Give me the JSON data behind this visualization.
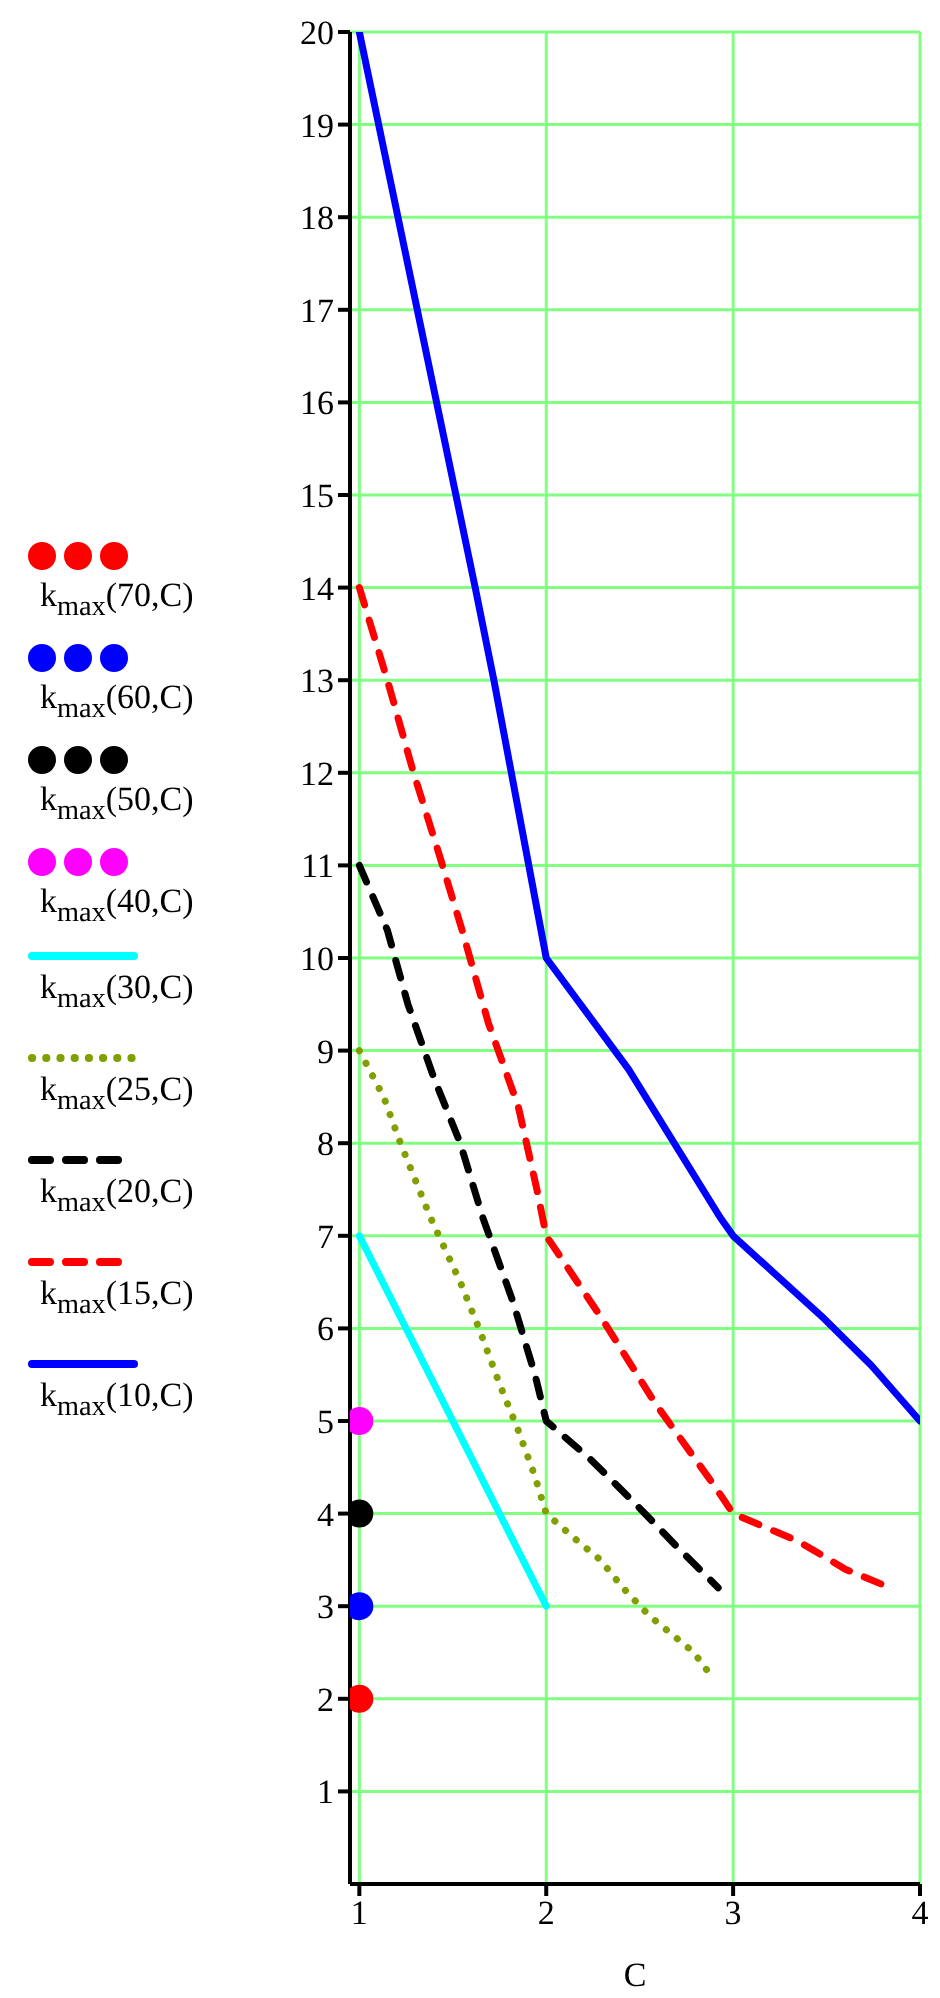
{
  "chart_data": {
    "type": "line",
    "xlabel": "C",
    "xlim": [
      0.95,
      4
    ],
    "xticks": [
      1,
      2,
      3,
      4
    ],
    "ylim": [
      0,
      20
    ],
    "yticks": [
      1,
      2,
      3,
      4,
      5,
      6,
      7,
      8,
      9,
      10,
      11,
      12,
      13,
      14,
      15,
      16,
      17,
      18,
      19,
      20
    ],
    "grid": true,
    "legend": "left",
    "series": [
      {
        "name": "k$_{max}$(70,C)",
        "type": "scatter",
        "marker": "circle",
        "color": "#ff0000",
        "x": [
          1
        ],
        "values": [
          2
        ]
      },
      {
        "name": "k$_{max}$(60,C)",
        "type": "scatter",
        "marker": "circle",
        "color": "#0000ff",
        "x": [
          1
        ],
        "values": [
          3
        ]
      },
      {
        "name": "k$_{max}$(50,C)",
        "type": "scatter",
        "marker": "circle",
        "color": "#000000",
        "x": [
          1
        ],
        "values": [
          4
        ]
      },
      {
        "name": "k$_{max}$(40,C)",
        "type": "scatter",
        "marker": "circle",
        "color": "#ff00ff",
        "x": [
          1
        ],
        "values": [
          5
        ]
      },
      {
        "name": "k$_{max}$(30,C)",
        "line_style": "solid",
        "color": "#00ffff",
        "x": [
          1,
          2
        ],
        "values": [
          7,
          3
        ]
      },
      {
        "name": "k$_{max}$(25,C)",
        "line_style": "dotted",
        "color": "#80a000",
        "x": [
          1,
          1.13,
          1.22,
          1.38,
          1.54,
          1.64,
          1.75,
          1.85,
          1.94,
          2,
          2.17,
          2.29,
          2.41,
          2.55,
          2.67,
          2.79,
          2.9
        ],
        "values": [
          9,
          8.5,
          8,
          7.2,
          6.5,
          6,
          5.4,
          4.9,
          4.4,
          4,
          3.7,
          3.5,
          3.2,
          2.9,
          2.7,
          2.5,
          2.2
        ]
      },
      {
        "name": "k$_{max}$(20,C)",
        "line_style": "dashed",
        "color": "#000000",
        "x": [
          1,
          1.15,
          1.26,
          1.4,
          1.54,
          1.66,
          1.82,
          1.94,
          2,
          2.23,
          2.48,
          2.72,
          2.92
        ],
        "values": [
          11,
          10.3,
          9.5,
          8.7,
          8,
          7.2,
          6.3,
          5.5,
          5,
          4.6,
          4.1,
          3.6,
          3.2
        ]
      },
      {
        "name": "k$_{max}$(15,C)",
        "line_style": "dashed",
        "color": "#ff0000",
        "x": [
          1,
          1.15,
          1.29,
          1.43,
          1.55,
          1.69,
          1.85,
          1.95,
          2,
          2.3,
          2.58,
          2.9,
          3,
          3.35,
          3.6,
          3.84
        ],
        "values": [
          14,
          13,
          12,
          11.1,
          10.3,
          9.3,
          8.4,
          7.5,
          7,
          6.1,
          5.2,
          4.3,
          4,
          3.7,
          3.4,
          3.2
        ]
      },
      {
        "name": "k$_{max}$(10,C)",
        "line_style": "solid",
        "color": "#0000ff",
        "x": [
          1,
          1.62,
          1.72,
          2,
          2.44,
          2.93,
          3,
          3.49,
          3.74,
          4
        ],
        "values": [
          20,
          14,
          13,
          10,
          8.8,
          7.2,
          7,
          6.1,
          5.6,
          5
        ]
      }
    ]
  }
}
